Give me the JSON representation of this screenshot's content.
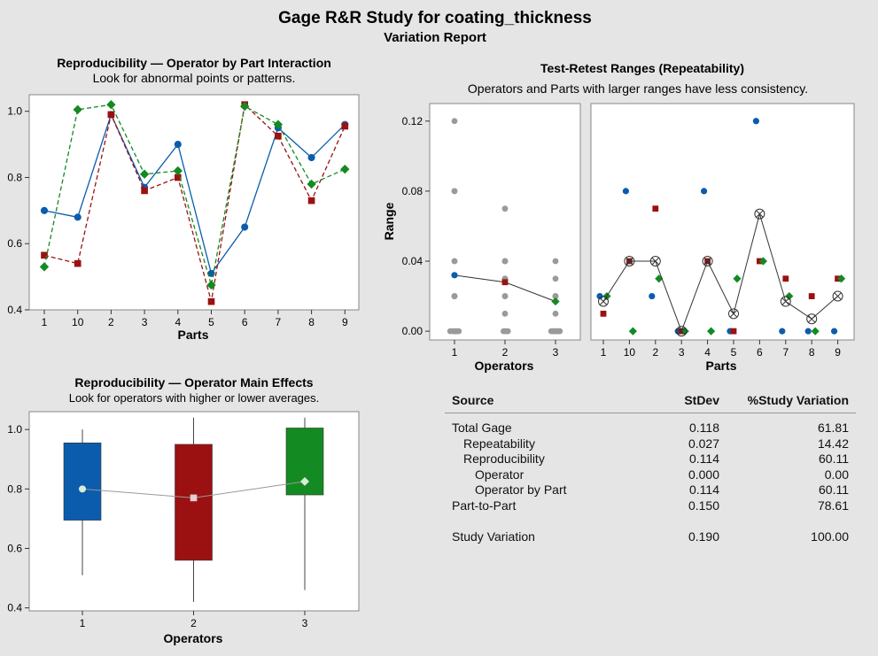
{
  "header": {
    "title": "Gage R&R Study for coating_thickness",
    "subtitle": "Variation Report"
  },
  "chart_data": [
    {
      "id": "interaction",
      "type": "line",
      "title": "Reproducibility — Operator by Part Interaction",
      "subtitle": "Look for abnormal points or patterns.",
      "xlabel": "Parts",
      "categories": [
        "1",
        "10",
        "2",
        "3",
        "4",
        "5",
        "6",
        "7",
        "8",
        "9"
      ],
      "ylim": [
        0.4,
        1.05
      ],
      "yticks": [
        "1.0",
        "0.8",
        "0.6",
        "0.4"
      ],
      "series": [
        {
          "color": "#0b5cad",
          "marker": "circle",
          "dashed": false,
          "values": [
            0.7,
            0.68,
            0.99,
            0.77,
            0.9,
            0.51,
            0.65,
            0.95,
            0.86,
            0.96
          ]
        },
        {
          "color": "#9b1111",
          "marker": "square",
          "dashed": true,
          "values": [
            0.565,
            0.54,
            0.99,
            0.76,
            0.8,
            0.425,
            1.02,
            0.925,
            0.73,
            0.955
          ]
        },
        {
          "color": "#138a22",
          "marker": "diamond",
          "dashed": true,
          "values": [
            0.53,
            1.005,
            1.02,
            0.81,
            0.82,
            0.475,
            1.015,
            0.96,
            0.78,
            0.825
          ]
        }
      ]
    },
    {
      "id": "ranges",
      "type": "scatter",
      "title": "Test-Retest Ranges (Repeatability)",
      "subtitle": "Operators and Parts with larger ranges have less consistency.",
      "ylabel": "Range",
      "ylim": [
        -0.005,
        0.13
      ],
      "yticks": [
        "0.12",
        "0.08",
        "0.04",
        "0.00"
      ],
      "by_operator": {
        "xlabel": "Operators",
        "categories": [
          "1",
          "2",
          "3"
        ],
        "points": [
          [
            0.12,
            0.08,
            0.08,
            0.08,
            0.04,
            0.04,
            0.02,
            0.02,
            0.02,
            0,
            0,
            0,
            0,
            0,
            0
          ],
          [
            0.07,
            0.04,
            0.04,
            0.04,
            0.03,
            0.03,
            0.02,
            0.02,
            0.01,
            0,
            0,
            0,
            0
          ],
          [
            0.04,
            0.03,
            0.02,
            0.02,
            0.02,
            0.01,
            0,
            0,
            0,
            0,
            0,
            0,
            0
          ]
        ],
        "means": [
          0.032,
          0.028,
          0.017
        ]
      },
      "by_part": {
        "xlabel": "Parts",
        "categories": [
          "1",
          "10",
          "2",
          "3",
          "4",
          "5",
          "6",
          "7",
          "8",
          "9"
        ],
        "series": [
          {
            "color": "#0b5cad",
            "marker": "circle",
            "values": [
              0.02,
              0.08,
              0.02,
              0.0,
              0.08,
              0.0,
              0.12,
              0.0,
              0.0,
              0.0
            ]
          },
          {
            "color": "#9b1111",
            "marker": "square",
            "values": [
              0.01,
              0.04,
              0.07,
              0.0,
              0.04,
              0.0,
              0.04,
              0.03,
              0.02,
              0.03
            ]
          },
          {
            "color": "#138a22",
            "marker": "diamond",
            "values": [
              0.02,
              0.0,
              0.03,
              0.0,
              0.0,
              0.03,
              0.04,
              0.02,
              0.0,
              0.03
            ]
          }
        ],
        "means": [
          0.017,
          0.04,
          0.04,
          0.0,
          0.04,
          0.01,
          0.067,
          0.017,
          0.007,
          0.02
        ]
      }
    },
    {
      "id": "main_effects",
      "type": "box",
      "title": "Reproducibility — Operator Main Effects",
      "subtitle": "Look for operators with higher or lower averages.",
      "xlabel": "Operators",
      "categories": [
        "1",
        "2",
        "3"
      ],
      "ylim": [
        0.39,
        1.06
      ],
      "yticks": [
        "1.0",
        "0.8",
        "0.6",
        "0.4"
      ],
      "boxes": [
        {
          "color": "#0b5cad",
          "min": 0.51,
          "q1": 0.695,
          "q3": 0.955,
          "max": 1.0,
          "mean": 0.8
        },
        {
          "color": "#9b1111",
          "min": 0.42,
          "q1": 0.56,
          "q3": 0.95,
          "max": 1.04,
          "mean": 0.77
        },
        {
          "color": "#138a22",
          "min": 0.46,
          "q1": 0.78,
          "q3": 1.005,
          "max": 1.04,
          "mean": 0.825
        }
      ]
    }
  ],
  "table": {
    "headers": {
      "source": "Source",
      "stdev": "StDev",
      "pct": "%Study Variation"
    },
    "rows": [
      {
        "source": "Total Gage",
        "stdev": "0.118",
        "pct": "61.81",
        "indent": 0
      },
      {
        "source": "Repeatability",
        "stdev": "0.027",
        "pct": "14.42",
        "indent": 1
      },
      {
        "source": "Reproducibility",
        "stdev": "0.114",
        "pct": "60.11",
        "indent": 1
      },
      {
        "source": "Operator",
        "stdev": "0.000",
        "pct": "0.00",
        "indent": 2
      },
      {
        "source": "Operator by Part",
        "stdev": "0.114",
        "pct": "60.11",
        "indent": 2
      },
      {
        "source": "Part-to-Part",
        "stdev": "0.150",
        "pct": "78.61",
        "indent": 0
      },
      {
        "source": "",
        "stdev": "",
        "pct": "",
        "indent": 0
      },
      {
        "source": "Study Variation",
        "stdev": "0.190",
        "pct": "100.00",
        "indent": 0
      }
    ]
  }
}
